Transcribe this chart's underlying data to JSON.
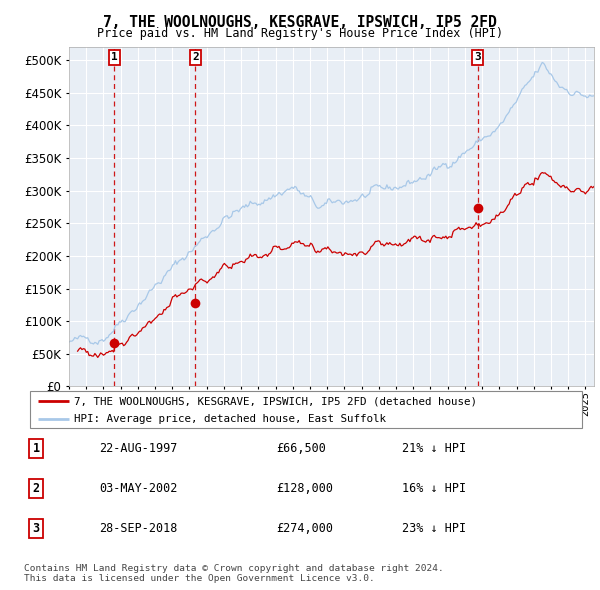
{
  "title": "7, THE WOOLNOUGHS, KESGRAVE, IPSWICH, IP5 2FD",
  "subtitle": "Price paid vs. HM Land Registry's House Price Index (HPI)",
  "xlim_start": 1995.0,
  "xlim_end": 2025.5,
  "ylim": [
    0,
    520000
  ],
  "yticks": [
    0,
    50000,
    100000,
    150000,
    200000,
    250000,
    300000,
    350000,
    400000,
    450000,
    500000
  ],
  "sale_dates": [
    1997.64,
    2002.34,
    2018.74
  ],
  "sale_prices": [
    66500,
    128000,
    274000
  ],
  "sale_labels": [
    "1",
    "2",
    "3"
  ],
  "hpi_line_color": "#a8c8e8",
  "price_line_color": "#cc0000",
  "vline_color": "#cc0000",
  "background_color": "#e8eef5",
  "legend_entry1": "7, THE WOOLNOUGHS, KESGRAVE, IPSWICH, IP5 2FD (detached house)",
  "legend_entry2": "HPI: Average price, detached house, East Suffolk",
  "table_rows": [
    [
      "1",
      "22-AUG-1997",
      "£66,500",
      "21% ↓ HPI"
    ],
    [
      "2",
      "03-MAY-2002",
      "£128,000",
      "16% ↓ HPI"
    ],
    [
      "3",
      "28-SEP-2018",
      "£274,000",
      "23% ↓ HPI"
    ]
  ],
  "footnote": "Contains HM Land Registry data © Crown copyright and database right 2024.\nThis data is licensed under the Open Government Licence v3.0."
}
